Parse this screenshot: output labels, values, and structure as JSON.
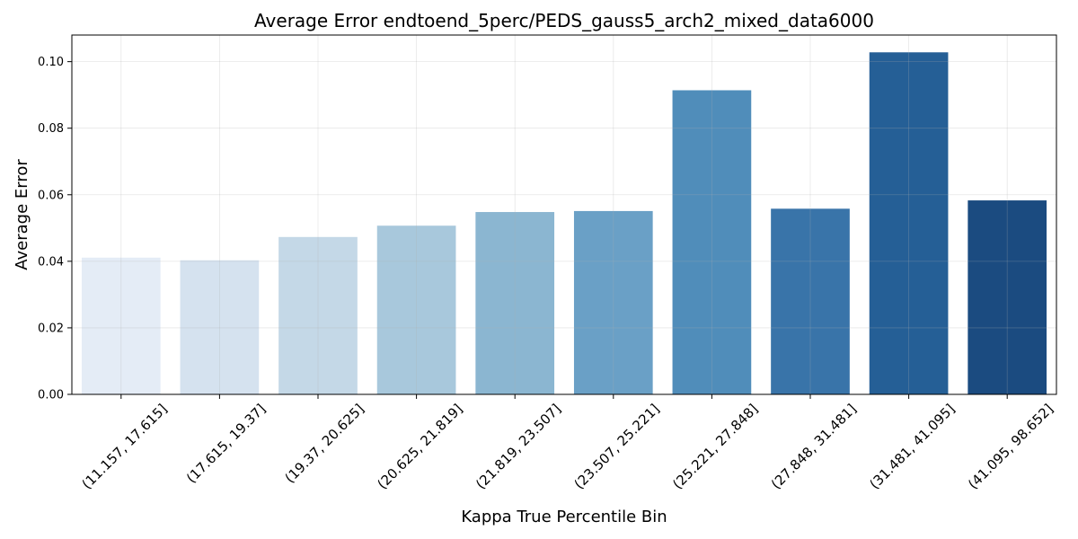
{
  "chart_data": {
    "type": "bar",
    "title": "Average Error endtoend_5perc/PEDS_gauss5_arch2_mixed_data6000",
    "xlabel": "Kappa True Percentile Bin",
    "ylabel": "Average Error",
    "categories": [
      "(11.157, 17.615]",
      "(17.615, 19.37]",
      "(19.37, 20.625]",
      "(20.625, 21.819]",
      "(21.819, 23.507]",
      "(23.507, 25.221]",
      "(25.221, 27.848]",
      "(27.848, 31.481]",
      "(31.481, 41.095]",
      "(41.095, 98.652]"
    ],
    "values": [
      0.0411,
      0.0403,
      0.0473,
      0.0507,
      0.0548,
      0.0551,
      0.0914,
      0.0558,
      0.1028,
      0.0583
    ],
    "colors": [
      "#e4ecf6",
      "#d5e2ef",
      "#c4d8e7",
      "#a8c8dc",
      "#8bb6d1",
      "#6aa0c6",
      "#508dba",
      "#3974a9",
      "#255f96",
      "#1b4b80"
    ],
    "ylim": [
      0,
      0.108
    ],
    "yticks": [
      0.0,
      0.02,
      0.04,
      0.06,
      0.08,
      0.1
    ],
    "ytick_labels": [
      "0.00",
      "0.02",
      "0.04",
      "0.06",
      "0.08",
      "0.10"
    ],
    "grid": true,
    "legend": "none"
  }
}
